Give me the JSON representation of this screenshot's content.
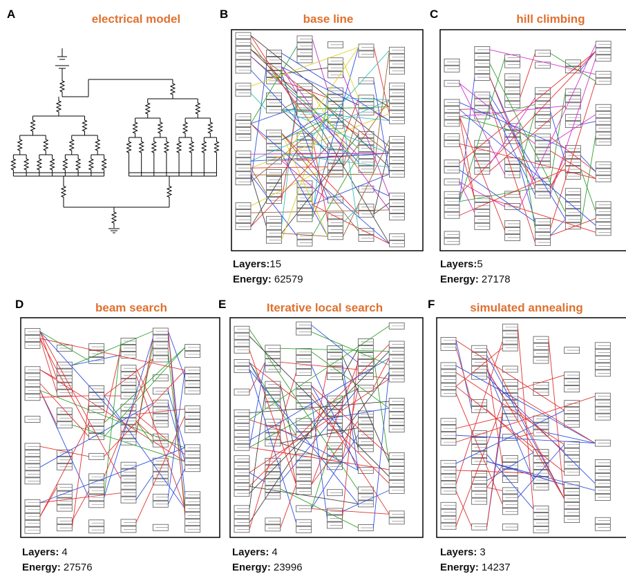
{
  "panels": [
    {
      "letter": "A",
      "title": "electrical model"
    },
    {
      "letter": "B",
      "title": "base line",
      "layers_label": "Layers:",
      "layers": "15",
      "energy_label": "Energy:",
      "energy": "62579"
    },
    {
      "letter": "C",
      "title": "hill climbing",
      "layers_label": "Layers:",
      "layers": "5",
      "energy_label": "Energy:",
      "energy": "27178"
    },
    {
      "letter": "D",
      "title": "beam search",
      "layers_label": "Layers:",
      "layers": "4",
      "energy_label": "Energy:",
      "energy": "27576"
    },
    {
      "letter": "E",
      "title": "Iterative local search",
      "layers_label": "Layers:",
      "layers": "4",
      "energy_label": "Energy:",
      "energy": "23996"
    },
    {
      "letter": "F",
      "title": "simulated annealing",
      "layers_label": "Layers:",
      "layers": "3",
      "energy_label": "Energy:",
      "energy": "14237"
    }
  ]
}
